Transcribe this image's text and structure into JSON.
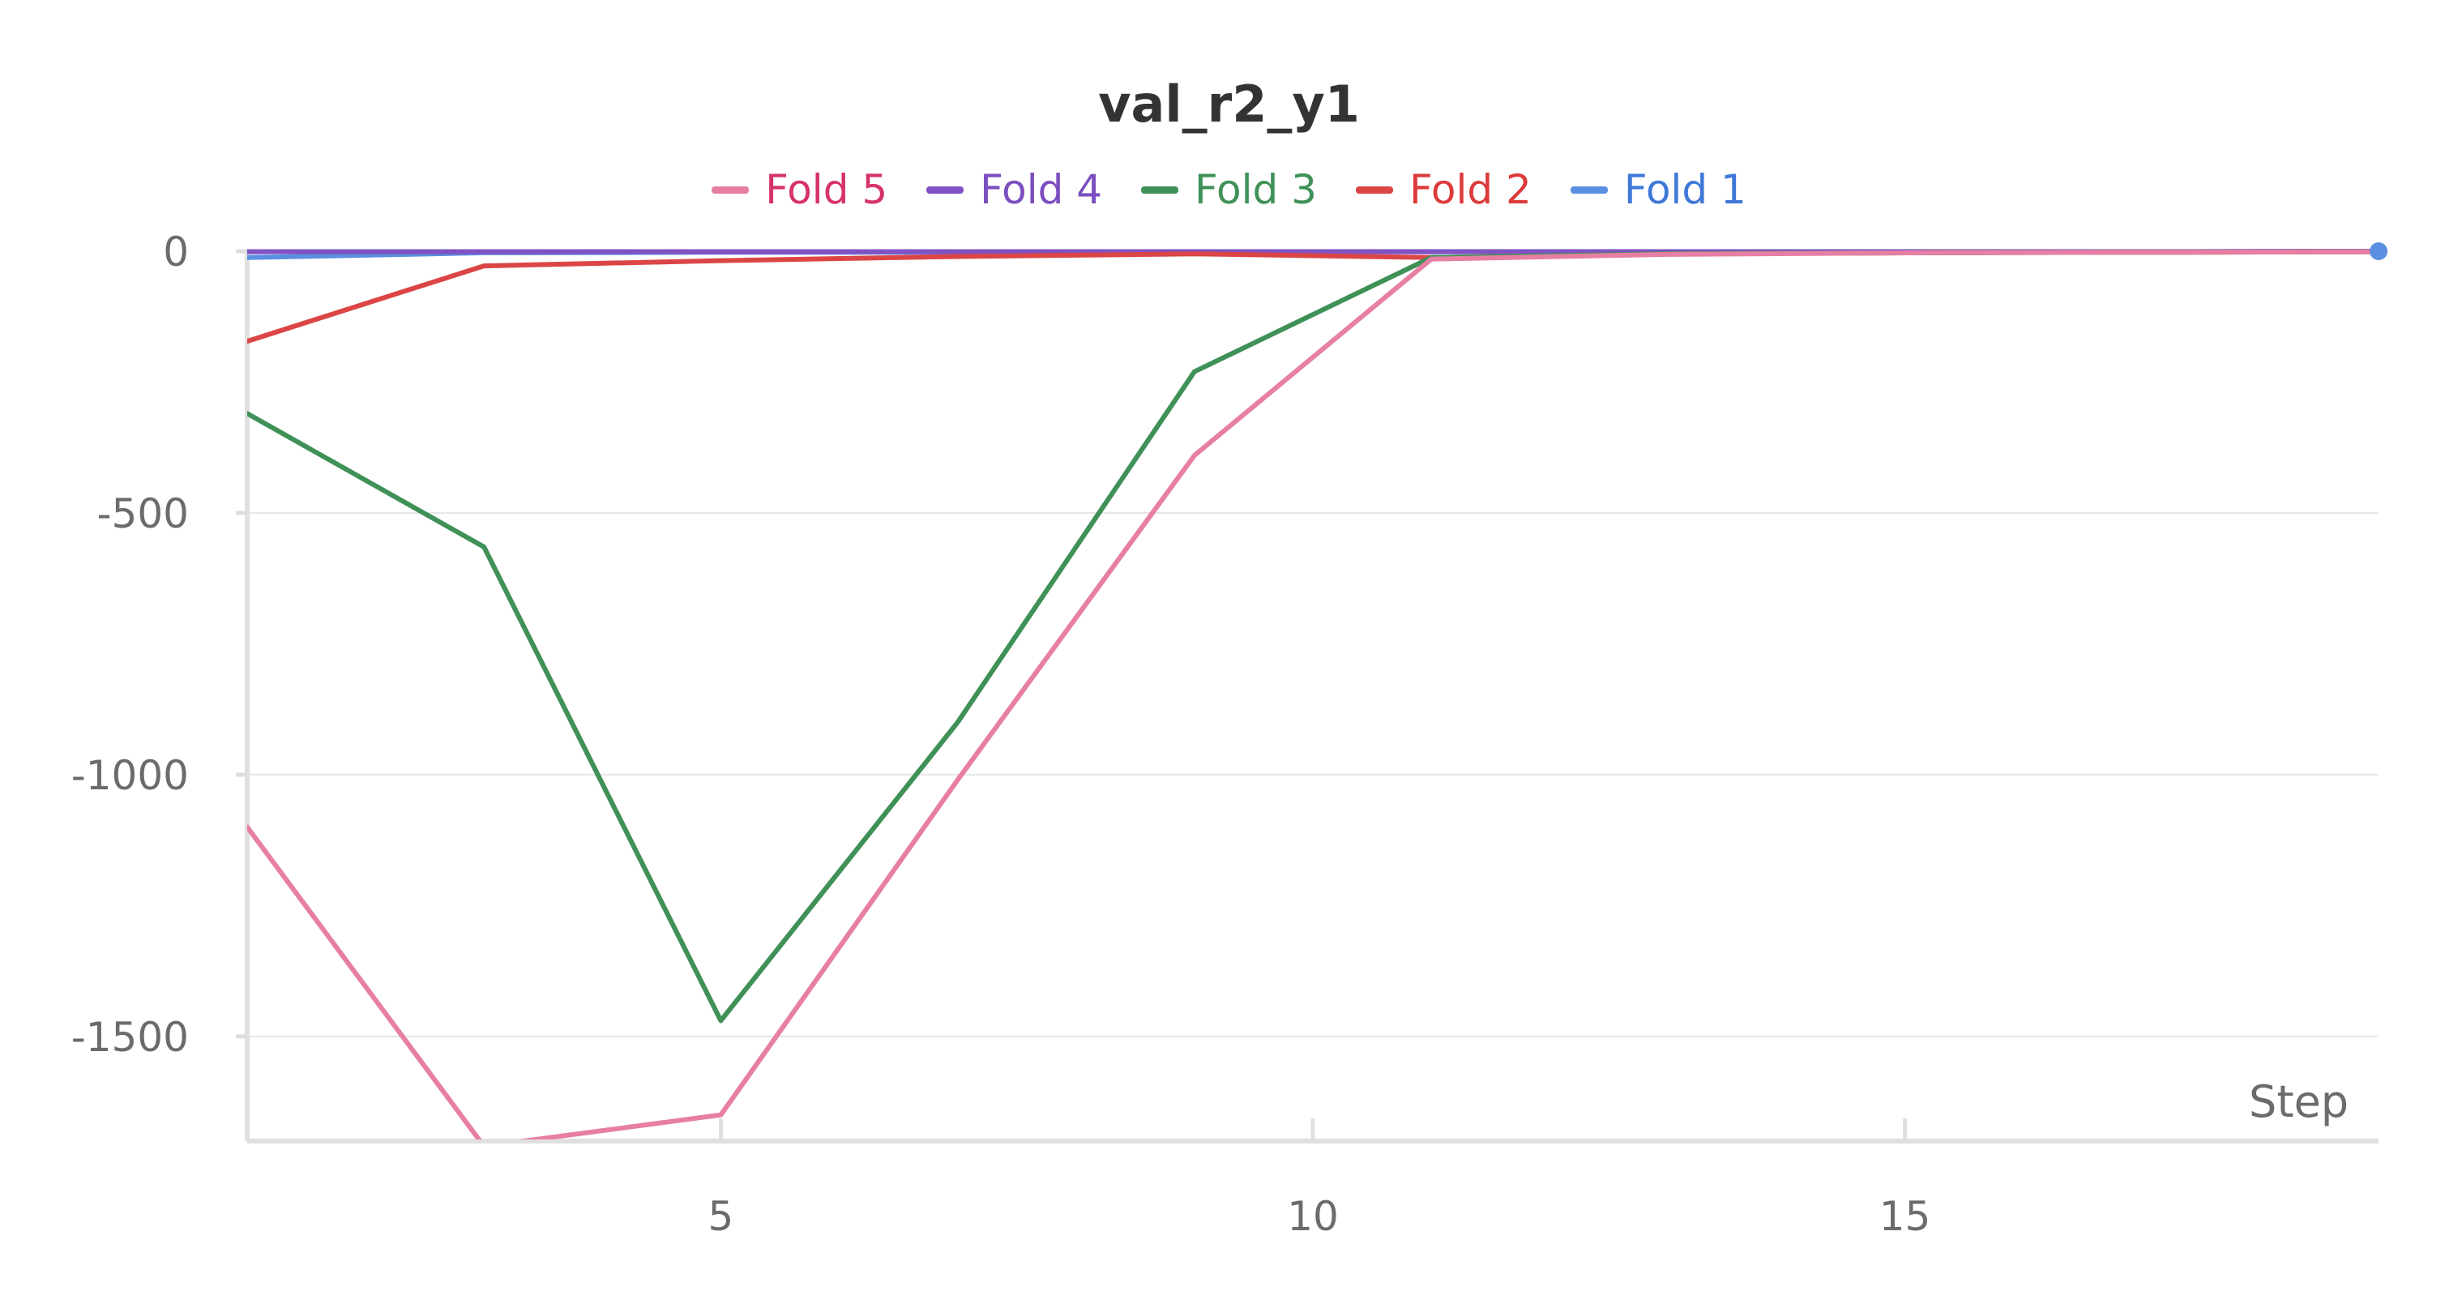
{
  "chart_data": {
    "type": "line",
    "title": "val_r2_y1",
    "xlabel": "Step",
    "ylabel": "",
    "xlim": [
      1,
      19
    ],
    "ylim": [
      -1700,
      0
    ],
    "xticks": [
      5,
      10,
      15
    ],
    "yticks": [
      0,
      -500,
      -1000,
      -1500
    ],
    "grid": true,
    "legend_position": "top-center",
    "legend": [
      {
        "name": "Fold 5",
        "color": "#e77fa4",
        "text_color": "#d6336c"
      },
      {
        "name": "Fold 4",
        "color": "#8052c4",
        "text_color": "#7b4fbf"
      },
      {
        "name": "Fold 3",
        "color": "#3f9157",
        "text_color": "#3f9157"
      },
      {
        "name": "Fold 2",
        "color": "#dc4545",
        "text_color": "#dc3b3b"
      },
      {
        "name": "Fold 1",
        "color": "#5b8fe0",
        "text_color": "#3f78d8"
      }
    ],
    "series": [
      {
        "name": "Fold 1",
        "color": "#5b8fe0",
        "x": [
          1,
          3,
          5,
          7,
          9,
          11,
          13,
          15,
          17,
          19
        ],
        "y": [
          -12,
          -3,
          -2,
          -2,
          -1,
          -1,
          -1,
          -1,
          -1,
          0
        ]
      },
      {
        "name": "Fold 4",
        "color": "#8052c4",
        "x": [
          1,
          3,
          5,
          7,
          9,
          11,
          13,
          15,
          17,
          19
        ],
        "y": [
          -1,
          -1,
          -1,
          -1,
          -1,
          -1,
          -1,
          -1,
          -1,
          0
        ]
      },
      {
        "name": "Fold 2",
        "color": "#dc4545",
        "x": [
          1,
          3,
          5,
          7,
          9,
          11,
          13,
          15,
          17,
          19
        ],
        "y": [
          -172,
          -28,
          -18,
          -10,
          -5,
          -12,
          -5,
          -3,
          -2,
          -1
        ]
      },
      {
        "name": "Fold 3",
        "color": "#3f9157",
        "x": [
          1,
          3,
          5,
          7,
          9,
          11,
          13,
          15,
          17,
          19
        ],
        "y": [
          -310,
          -565,
          -1470,
          -900,
          -230,
          -12,
          -5,
          -3,
          -2,
          -1
        ]
      },
      {
        "name": "Fold 5",
        "color": "#e77fa4",
        "x": [
          1,
          3,
          5,
          7,
          9,
          11,
          13,
          15,
          17,
          19
        ],
        "y": [
          -1100,
          -1710,
          -1650,
          -1010,
          -390,
          -15,
          -6,
          -3,
          -2,
          -1
        ]
      }
    ]
  }
}
